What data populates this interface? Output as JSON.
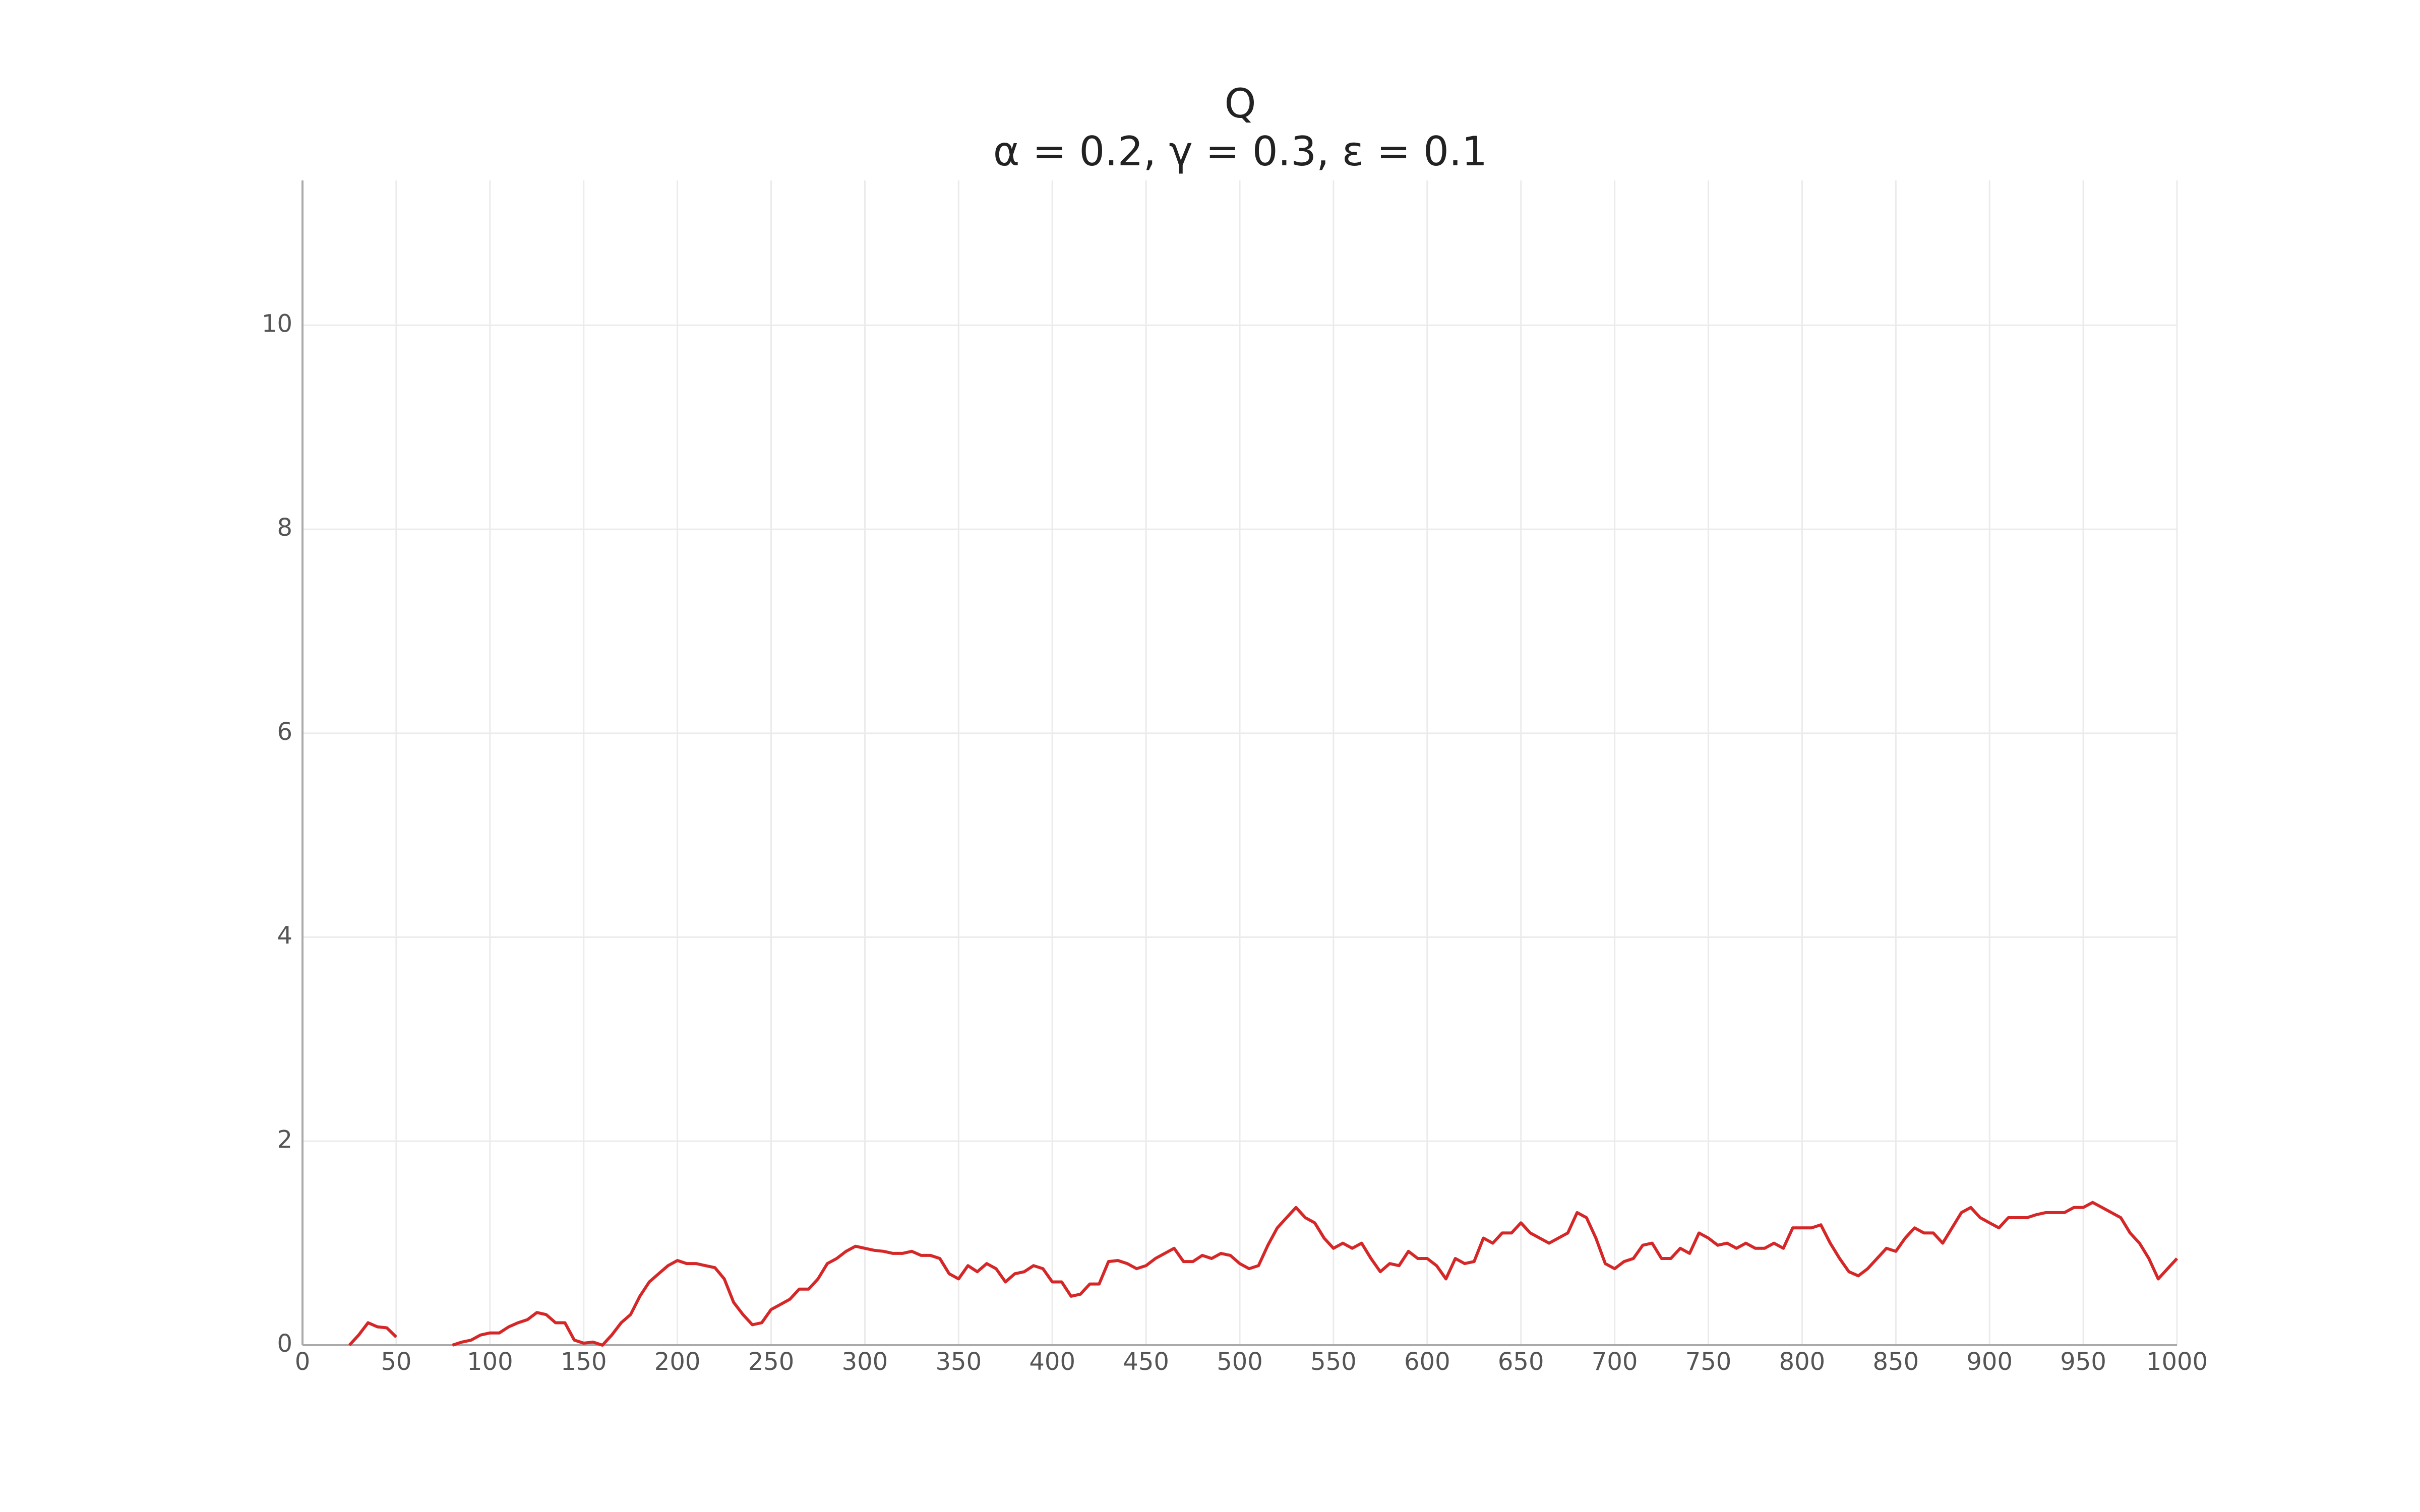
{
  "chart_data": {
    "type": "line",
    "title": "Q",
    "subtitle": "α = 0.2, γ = 0.3, ε = 0.1",
    "x": [
      0,
      5,
      10,
      15,
      20,
      25,
      30,
      35,
      40,
      45,
      50,
      55,
      60,
      65,
      70,
      75,
      80,
      85,
      90,
      95,
      100,
      105,
      110,
      115,
      120,
      125,
      130,
      135,
      140,
      145,
      150,
      155,
      160,
      165,
      170,
      175,
      180,
      185,
      190,
      195,
      200,
      205,
      210,
      215,
      220,
      225,
      230,
      235,
      240,
      245,
      250,
      255,
      260,
      265,
      270,
      275,
      280,
      285,
      290,
      295,
      300,
      305,
      310,
      315,
      320,
      325,
      330,
      335,
      340,
      345,
      350,
      355,
      360,
      365,
      370,
      375,
      380,
      385,
      390,
      395,
      400,
      405,
      410,
      415,
      420,
      425,
      430,
      435,
      440,
      445,
      450,
      455,
      460,
      465,
      470,
      475,
      480,
      485,
      490,
      495,
      500,
      505,
      510,
      515,
      520,
      525,
      530,
      535,
      540,
      545,
      550,
      555,
      560,
      565,
      570,
      575,
      580,
      585,
      590,
      595,
      600,
      605,
      610,
      615,
      620,
      625,
      630,
      635,
      640,
      645,
      650,
      655,
      660,
      665,
      670,
      675,
      680,
      685,
      690,
      695,
      700,
      705,
      710,
      715,
      720,
      725,
      730,
      735,
      740,
      745,
      750,
      755,
      760,
      765,
      770,
      775,
      780,
      785,
      790,
      795,
      800,
      805,
      810,
      815,
      820,
      825,
      830,
      835,
      840,
      845,
      850,
      855,
      860,
      865,
      870,
      875,
      880,
      885,
      890,
      895,
      900,
      905,
      910,
      915,
      920,
      925,
      930,
      935,
      940,
      945,
      950,
      955,
      960,
      965,
      970,
      975,
      980,
      985,
      990,
      995,
      1000
    ],
    "series": [
      {
        "color": "#d62728",
        "values": [
          null,
          null,
          null,
          null,
          null,
          0.0,
          0.1,
          0.22,
          0.18,
          0.17,
          0.08,
          null,
          null,
          null,
          null,
          null,
          0.0,
          0.03,
          0.05,
          0.1,
          0.12,
          0.12,
          0.18,
          0.22,
          0.25,
          0.32,
          0.3,
          0.22,
          0.22,
          0.05,
          0.02,
          0.03,
          0.0,
          0.1,
          0.22,
          0.3,
          0.48,
          0.62,
          0.7,
          0.78,
          0.83,
          0.8,
          0.8,
          0.78,
          0.76,
          0.65,
          0.42,
          0.3,
          0.2,
          0.22,
          0.35,
          0.4,
          0.45,
          0.55,
          0.55,
          0.65,
          0.8,
          0.85,
          0.92,
          0.97,
          0.95,
          0.93,
          0.92,
          0.9,
          0.9,
          0.92,
          0.88,
          0.88,
          0.85,
          0.7,
          0.65,
          0.78,
          0.72,
          0.8,
          0.75,
          0.62,
          0.7,
          0.72,
          0.78,
          0.75,
          0.62,
          0.62,
          0.48,
          0.5,
          0.6,
          0.6,
          0.82,
          0.83,
          0.8,
          0.75,
          0.78,
          0.85,
          0.9,
          0.95,
          0.82,
          0.82,
          0.88,
          0.85,
          0.9,
          0.88,
          0.8,
          0.75,
          0.78,
          0.98,
          1.15,
          1.25,
          1.35,
          1.25,
          1.2,
          1.05,
          0.95,
          1.0,
          0.95,
          1.0,
          0.85,
          0.72,
          0.8,
          0.78,
          0.92,
          0.85,
          0.85,
          0.78,
          0.65,
          0.85,
          0.8,
          0.82,
          1.05,
          1.0,
          1.1,
          1.1,
          1.2,
          1.1,
          1.05,
          1.0,
          1.05,
          1.1,
          1.3,
          1.25,
          1.05,
          0.8,
          0.75,
          0.82,
          0.85,
          0.98,
          1.0,
          0.85,
          0.85,
          0.95,
          0.9,
          1.1,
          1.05,
          0.98,
          1.0,
          0.95,
          1.0,
          0.95,
          0.95,
          1.0,
          0.95,
          1.15,
          1.15,
          1.15,
          1.18,
          1.0,
          0.85,
          0.72,
          0.68,
          0.75,
          0.85,
          0.95,
          0.92,
          1.05,
          1.15,
          1.1,
          1.1,
          1.0,
          1.15,
          1.3,
          1.35,
          1.25,
          1.2,
          1.15,
          1.25,
          1.25,
          1.25,
          1.28,
          1.3,
          1.3,
          1.3,
          1.35,
          1.35,
          1.4,
          1.35,
          1.3,
          1.25,
          1.1,
          1.0,
          0.85,
          0.65,
          0.75,
          0.85
        ]
      }
    ],
    "xlim": [
      0,
      1000
    ],
    "xticks": [
      0,
      50,
      100,
      150,
      200,
      250,
      300,
      350,
      400,
      450,
      500,
      550,
      600,
      650,
      700,
      750,
      800,
      850,
      900,
      950,
      1000
    ],
    "ylim": [
      0,
      11.42
    ],
    "yticks": [
      0,
      2,
      4,
      6,
      8,
      10
    ],
    "grid": true
  }
}
